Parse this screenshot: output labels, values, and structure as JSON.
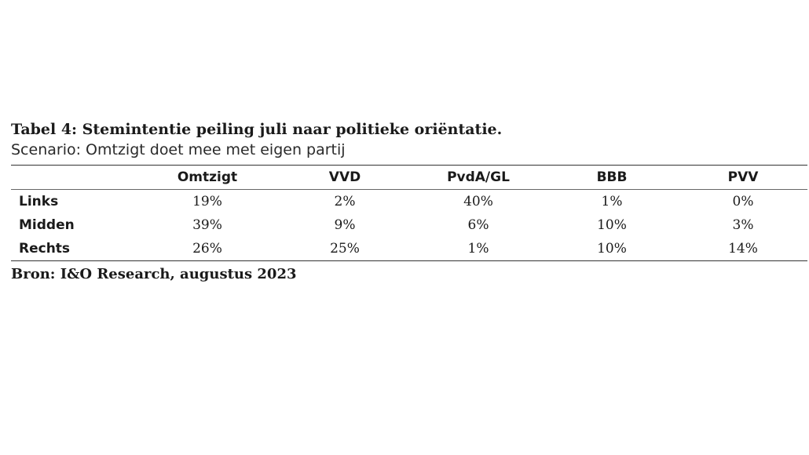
{
  "title": "Tabel 4: Stemintentie peiling juli naar politieke oriëntatie.",
  "subtitle": "Scenario: Omtzigt doet mee met eigen partij",
  "table": {
    "columns": [
      "Omtzigt",
      "VVD",
      "PvdA/GL",
      "BBB",
      "PVV"
    ],
    "rows": [
      {
        "label": "Links",
        "cells": [
          "19%",
          "2%",
          "40%",
          "1%",
          "0%"
        ]
      },
      {
        "label": "Midden",
        "cells": [
          "39%",
          "9%",
          "6%",
          "10%",
          "3%"
        ]
      },
      {
        "label": "Rechts",
        "cells": [
          "26%",
          "25%",
          "1%",
          "10%",
          "14%"
        ]
      }
    ]
  },
  "source": "Bron: I&O Research, augustus 2023"
}
